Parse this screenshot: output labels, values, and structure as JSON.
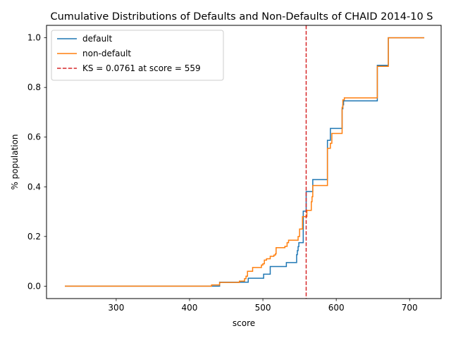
{
  "chart_data": {
    "type": "line",
    "title": "Cumulative Distributions of Defaults and Non-Defaults of CHAID 2014-10 S",
    "xlabel": "score",
    "ylabel": "% population",
    "xlim": [
      205,
      743
    ],
    "ylim": [
      -0.05,
      1.05
    ],
    "xticks": [
      300,
      400,
      500,
      600,
      700
    ],
    "yticks": [
      0.0,
      0.2,
      0.4,
      0.6,
      0.8,
      1.0
    ],
    "xtick_labels": [
      "300",
      "400",
      "500",
      "600",
      "700"
    ],
    "ytick_labels": [
      "0.0",
      "0.2",
      "0.4",
      "0.6",
      "0.8",
      "1.0"
    ],
    "grid": false,
    "legend_position": "top-left",
    "series": [
      {
        "name": "default",
        "color": "#1f77b4",
        "style": "step",
        "x": [
          230,
          440,
          441,
          478,
          480,
          500,
          501,
          508,
          510,
          531,
          532,
          545,
          546,
          547,
          548,
          549,
          551,
          555,
          556,
          558,
          559,
          567,
          568,
          587,
          588,
          591,
          592,
          607,
          608,
          609,
          610,
          655,
          656,
          670,
          671,
          720
        ],
        "y": [
          0.0,
          0.0,
          0.016,
          0.016,
          0.032,
          0.032,
          0.048,
          0.048,
          0.079,
          0.079,
          0.095,
          0.095,
          0.127,
          0.143,
          0.159,
          0.175,
          0.175,
          0.302,
          0.302,
          0.302,
          0.381,
          0.381,
          0.429,
          0.429,
          0.587,
          0.587,
          0.635,
          0.635,
          0.714,
          0.73,
          0.746,
          0.746,
          0.889,
          0.889,
          1.0,
          1.0
        ]
      },
      {
        "name": "non-default",
        "color": "#ff7f0e",
        "style": "step",
        "x": [
          230,
          428,
          430,
          440,
          441,
          465,
          468,
          472,
          475,
          477,
          479,
          484,
          486,
          496,
          498,
          500,
          502,
          505,
          510,
          515,
          517,
          518,
          519,
          530,
          533,
          535,
          546,
          548,
          550,
          552,
          554,
          556,
          560,
          565,
          566,
          567,
          568,
          587,
          588,
          590,
          592,
          594,
          596,
          607,
          608,
          609,
          611,
          654,
          656,
          669,
          671,
          720
        ],
        "y": [
          0.0,
          0.0,
          0.005,
          0.005,
          0.015,
          0.015,
          0.02,
          0.02,
          0.03,
          0.04,
          0.06,
          0.06,
          0.075,
          0.075,
          0.085,
          0.09,
          0.105,
          0.11,
          0.12,
          0.125,
          0.13,
          0.155,
          0.155,
          0.16,
          0.175,
          0.185,
          0.185,
          0.2,
          0.23,
          0.23,
          0.28,
          0.28,
          0.305,
          0.305,
          0.34,
          0.36,
          0.405,
          0.405,
          0.555,
          0.555,
          0.575,
          0.615,
          0.615,
          0.615,
          0.72,
          0.75,
          0.758,
          0.758,
          0.885,
          0.885,
          1.0,
          1.0
        ]
      }
    ],
    "vline": {
      "x": 559,
      "color": "#d62728",
      "style": "dashed",
      "label": "KS = 0.0761 at score = 559"
    },
    "legend": [
      {
        "label": "default",
        "color": "#1f77b4",
        "style": "solid"
      },
      {
        "label": "non-default",
        "color": "#ff7f0e",
        "style": "solid"
      },
      {
        "label": "KS = 0.0761 at score = 559",
        "color": "#d62728",
        "style": "dashed"
      }
    ]
  }
}
